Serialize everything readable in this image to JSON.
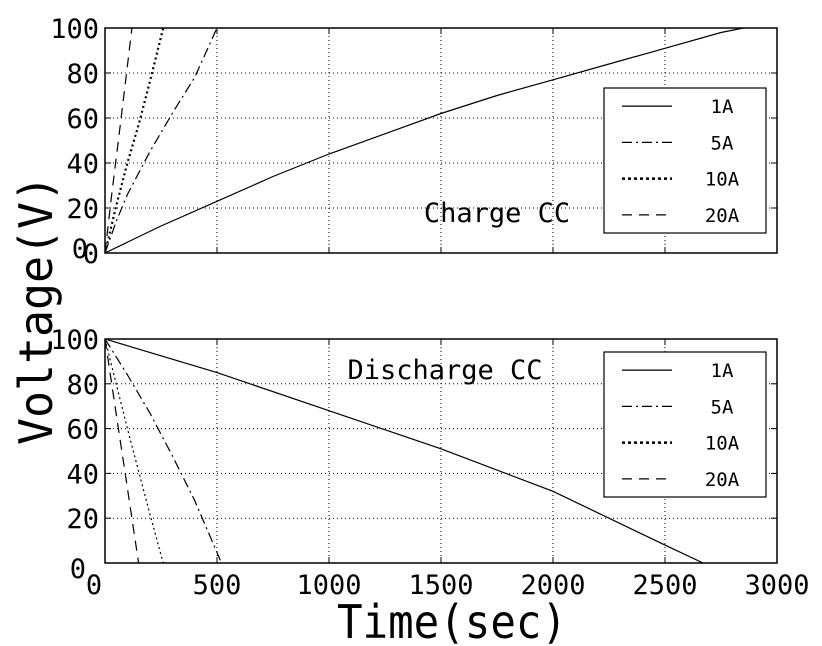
{
  "chart_data": [
    {
      "type": "line",
      "annotation": "Charge CC",
      "xlim": [
        0,
        3000
      ],
      "ylim": [
        0,
        100
      ],
      "xticks": [
        0,
        500,
        1000,
        1500,
        2000,
        2500,
        3000
      ],
      "yticks": [
        0,
        20,
        40,
        60,
        80,
        100
      ],
      "ytick_labels": [
        "0",
        "20",
        "40",
        "60",
        "80",
        "100"
      ],
      "grid": true,
      "legend_position": "right",
      "series": [
        {
          "name": "1A",
          "style": "solid",
          "x": [
            0,
            250,
            500,
            750,
            1000,
            1250,
            1500,
            1750,
            2000,
            2250,
            2500,
            2750,
            2850
          ],
          "y": [
            0,
            12,
            23,
            34,
            44,
            53,
            62,
            70,
            77,
            84,
            91,
            98,
            100
          ]
        },
        {
          "name": "5A",
          "style": "dashdot",
          "x": [
            0,
            50,
            100,
            200,
            300,
            400,
            500
          ],
          "y": [
            0,
            14,
            26,
            45,
            62,
            78,
            100
          ]
        },
        {
          "name": "10A",
          "style": "dotted",
          "x": [
            0,
            50,
            100,
            150,
            200,
            260
          ],
          "y": [
            0,
            21,
            40,
            57,
            76,
            100
          ]
        },
        {
          "name": "20A",
          "style": "dashed",
          "x": [
            0,
            30,
            60,
            90,
            120
          ],
          "y": [
            0,
            26,
            50,
            75,
            100
          ]
        }
      ]
    },
    {
      "type": "line",
      "annotation": "Discharge CC",
      "xlim": [
        0,
        3000
      ],
      "ylim": [
        0,
        100
      ],
      "xticks": [
        0,
        500,
        1000,
        1500,
        2000,
        2500,
        3000
      ],
      "yticks": [
        0,
        20,
        40,
        60,
        80,
        100
      ],
      "ytick_labels": [
        "",
        "20",
        "40",
        "60",
        "80",
        "100"
      ],
      "grid": true,
      "legend_position": "top-right",
      "series": [
        {
          "name": "1A",
          "style": "solid",
          "x": [
            0,
            500,
            1000,
            1500,
            2000,
            2500,
            2670
          ],
          "y": [
            100,
            85,
            68,
            51,
            32,
            8,
            0
          ]
        },
        {
          "name": "5A",
          "style": "dashdot",
          "x": [
            0,
            100,
            200,
            300,
            400,
            520
          ],
          "y": [
            100,
            84,
            67,
            48,
            28,
            0
          ]
        },
        {
          "name": "10A",
          "style": "dotted",
          "x": [
            0,
            50,
            100,
            150,
            200,
            260
          ],
          "y": [
            100,
            80,
            60,
            41,
            22,
            0
          ]
        },
        {
          "name": "20A",
          "style": "dashed",
          "x": [
            0,
            30,
            60,
            90,
            120,
            150
          ],
          "y": [
            100,
            80,
            60,
            40,
            20,
            0
          ]
        }
      ]
    }
  ],
  "figure": {
    "xlabel": "Time(sec)",
    "ylabel": "Voltage(V)",
    "xtick_labels": [
      "0",
      "500",
      "1000",
      "1500",
      "2000",
      "2500",
      "3000"
    ],
    "corner_labels": {
      "top": "0",
      "bottom": "0"
    }
  }
}
